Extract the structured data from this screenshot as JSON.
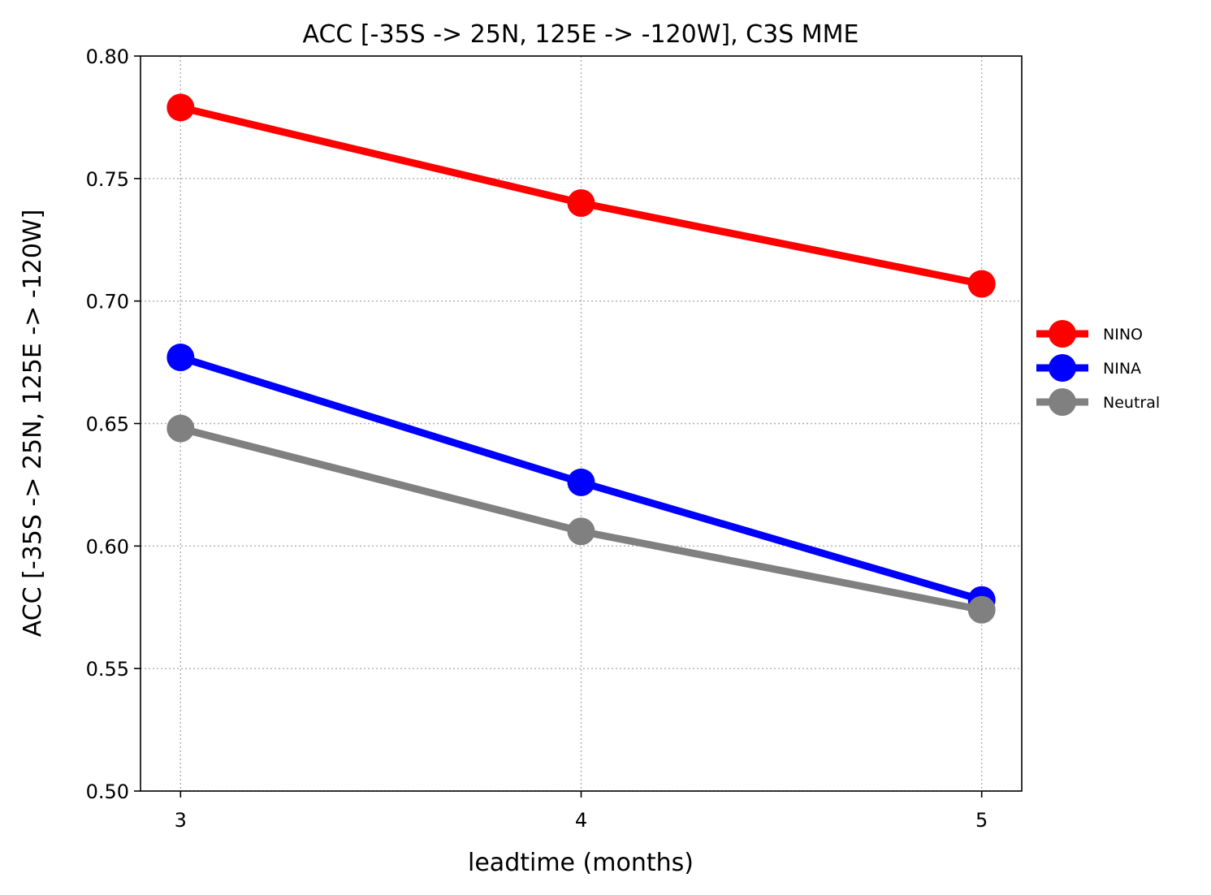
{
  "chart_data": {
    "type": "line",
    "title": "ACC [-35S -> 25N, 125E -> -120W], C3S MME",
    "xlabel": "leadtime (months)",
    "ylabel": "ACC [-35S -> 25N, 125E -> -120W]",
    "x": [
      3,
      4,
      5
    ],
    "x_ticks": [
      "3",
      "4",
      "5"
    ],
    "xlim": [
      2.9,
      5.1
    ],
    "ylim": [
      0.5,
      0.8
    ],
    "y_ticks": [
      "0.50",
      "0.55",
      "0.60",
      "0.65",
      "0.70",
      "0.75",
      "0.80"
    ],
    "grid": true,
    "legend_position": "outside-right",
    "series": [
      {
        "name": "NINO",
        "color": "#ff0000",
        "values": [
          0.779,
          0.74,
          0.707
        ]
      },
      {
        "name": "NINA",
        "color": "#0000ff",
        "values": [
          0.677,
          0.626,
          0.578
        ]
      },
      {
        "name": "Neutral",
        "color": "#808080",
        "values": [
          0.648,
          0.606,
          0.574
        ]
      }
    ]
  }
}
